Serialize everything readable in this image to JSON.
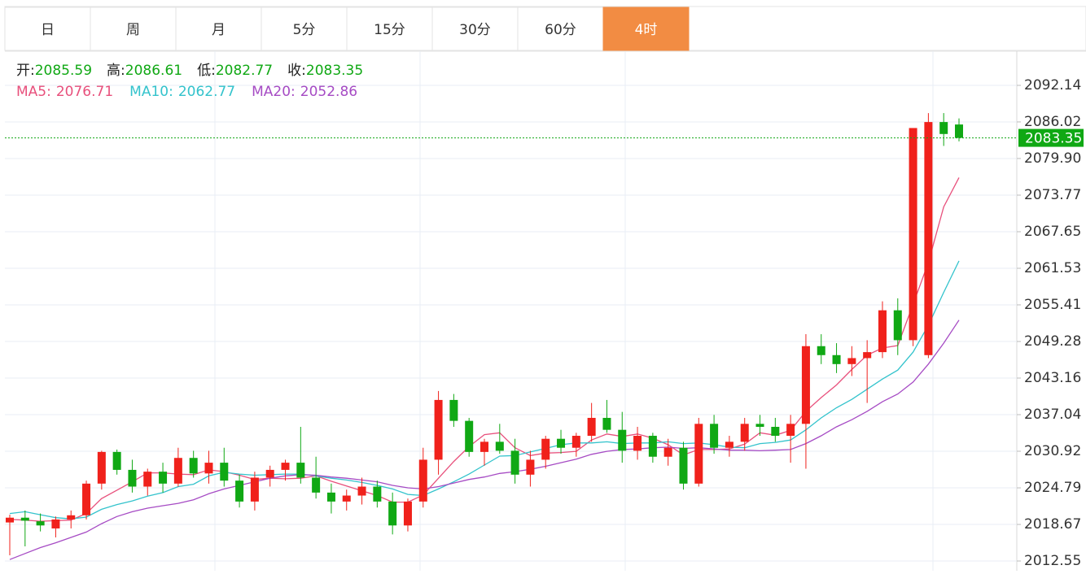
{
  "tabs": [
    "日",
    "周",
    "月",
    "5分",
    "15分",
    "30分",
    "60分",
    "4时"
  ],
  "active_tab": 7,
  "chart_data": {
    "type": "candlestick",
    "info": [
      {
        "label": "开:",
        "value": 2085.59
      },
      {
        "label": "高:",
        "value": 2086.61
      },
      {
        "label": "低:",
        "value": 2082.77
      },
      {
        "label": "收:",
        "value": 2083.35
      }
    ],
    "up_color": "#f0211b",
    "down_color": "#10a814",
    "last_price": 2083.35,
    "last_price_color": "#10a814",
    "ylim": [
      2010.92,
      2097.85
    ],
    "yticks": [
      2012.55,
      2018.67,
      2024.79,
      2030.92,
      2037.04,
      2043.16,
      2049.28,
      2055.41,
      2061.53,
      2067.65,
      2073.77,
      {
        "value": 2079.9,
        "label": "2079.90"
      },
      2086.02,
      2092.14
    ],
    "grid": true,
    "candles": [
      [
        2019.0,
        2020.3,
        2013.5,
        2019.8
      ],
      [
        2019.8,
        2021.0,
        2015.0,
        2019.3
      ],
      [
        2019.2,
        2020.5,
        2017.5,
        2018.5
      ],
      [
        2018.0,
        2020.0,
        2016.5,
        2019.5
      ],
      [
        2019.5,
        2021.0,
        2018.0,
        2020.2
      ],
      [
        2020.2,
        2026.0,
        2019.5,
        2025.5
      ],
      [
        2025.5,
        2031.0,
        2024.5,
        2030.8
      ],
      [
        2030.8,
        2031.2,
        2027.0,
        2027.8
      ],
      [
        2027.8,
        2029.5,
        2024.0,
        2025.0
      ],
      [
        2025.0,
        2028.0,
        2023.5,
        2027.5
      ],
      [
        2027.5,
        2029.0,
        2024.0,
        2025.5
      ],
      [
        2025.5,
        2031.5,
        2025.0,
        2029.8
      ],
      [
        2029.8,
        2031.0,
        2026.5,
        2027.2
      ],
      [
        2027.2,
        2031.0,
        2025.5,
        2029.0
      ],
      [
        2029.0,
        2031.5,
        2025.0,
        2026.0
      ],
      [
        2026.0,
        2027.0,
        2021.5,
        2022.5
      ],
      [
        2022.5,
        2027.5,
        2021.0,
        2026.5
      ],
      [
        2026.5,
        2028.5,
        2025.0,
        2027.8
      ],
      [
        2027.8,
        2029.5,
        2026.0,
        2029.0
      ],
      [
        2029.0,
        2035.0,
        2025.5,
        2026.5
      ],
      [
        2026.5,
        2030.0,
        2023.0,
        2024.0
      ],
      [
        2024.0,
        2025.5,
        2020.5,
        2022.5
      ],
      [
        2022.5,
        2024.5,
        2021.0,
        2023.5
      ],
      [
        2023.5,
        2026.5,
        2022.0,
        2025.0
      ],
      [
        2025.0,
        2026.0,
        2021.5,
        2022.5
      ],
      [
        2022.5,
        2024.0,
        2017.0,
        2018.5
      ],
      [
        2018.5,
        2023.0,
        2017.5,
        2022.5
      ],
      [
        2022.5,
        2031.5,
        2021.5,
        2029.5
      ],
      [
        2029.5,
        2041.0,
        2027.0,
        2039.5
      ],
      [
        2039.5,
        2040.5,
        2035.0,
        2036.0
      ],
      [
        2036.0,
        2036.5,
        2030.0,
        2030.8
      ],
      [
        2030.8,
        2033.0,
        2028.5,
        2032.5
      ],
      [
        2032.5,
        2035.5,
        2030.5,
        2031.0
      ],
      [
        2031.0,
        2033.0,
        2025.5,
        2027.0
      ],
      [
        2027.0,
        2031.0,
        2025.0,
        2029.5
      ],
      [
        2029.5,
        2033.5,
        2028.0,
        2033.0
      ],
      [
        2033.0,
        2034.5,
        2030.5,
        2031.5
      ],
      [
        2031.5,
        2034.0,
        2030.0,
        2033.5
      ],
      [
        2033.5,
        2039.0,
        2032.5,
        2036.5
      ],
      [
        2036.5,
        2039.5,
        2034.0,
        2034.5
      ],
      [
        2034.5,
        2037.5,
        2029.0,
        2031.0
      ],
      [
        2031.0,
        2035.0,
        2029.5,
        2033.5
      ],
      [
        2033.5,
        2034.0,
        2029.0,
        2030.0
      ],
      [
        2030.0,
        2033.0,
        2028.5,
        2031.5
      ],
      [
        2031.5,
        2032.5,
        2024.5,
        2025.5
      ],
      [
        2025.5,
        2036.5,
        2025.0,
        2035.5
      ],
      [
        2035.5,
        2037.0,
        2030.5,
        2031.5
      ],
      [
        2031.5,
        2033.5,
        2030.0,
        2032.5
      ],
      [
        2032.5,
        2036.5,
        2031.0,
        2035.5
      ],
      [
        2035.5,
        2037.0,
        2033.5,
        2035.0
      ],
      [
        2035.0,
        2036.5,
        2032.5,
        2033.5
      ],
      [
        2033.5,
        2037.0,
        2029.0,
        2035.5
      ],
      [
        2035.5,
        2050.5,
        2028.0,
        2048.5
      ],
      [
        2048.5,
        2050.5,
        2045.5,
        2047.0
      ],
      [
        2047.0,
        2049.0,
        2044.0,
        2045.5
      ],
      [
        2045.5,
        2048.5,
        2043.5,
        2046.5
      ],
      [
        2046.5,
        2049.5,
        2039.0,
        2047.5
      ],
      [
        2047.5,
        2056.0,
        2046.5,
        2054.5
      ],
      [
        2054.5,
        2056.5,
        2047.0,
        2049.5
      ],
      [
        2049.5,
        2085.0,
        2048.5,
        2085.0
      ],
      [
        2047.0,
        2087.5,
        2046.5,
        2086.0
      ],
      [
        2086.0,
        2087.5,
        2082.0,
        2084.0
      ],
      [
        2085.59,
        2086.61,
        2082.77,
        2083.35
      ]
    ],
    "series": [
      {
        "name": "MA5:",
        "color": "#e8507c",
        "last": 2076.71,
        "values": [
          2019.5,
          2019.4,
          2019.2,
          2019.3,
          2019.4,
          2020.5,
          2023.0,
          2024.4,
          2025.8,
          2027.3,
          2027.3,
          2027.1,
          2027.0,
          2027.8,
          2027.5,
          2026.9,
          2026.2,
          2026.4,
          2026.3,
          2026.4,
          2026.8,
          2025.9,
          2025.1,
          2024.3,
          2023.5,
          2022.4,
          2022.4,
          2023.6,
          2026.4,
          2029.2,
          2031.7,
          2033.7,
          2034.0,
          2031.5,
          2030.2,
          2030.6,
          2030.7,
          2030.9,
          2032.8,
          2033.8,
          2033.4,
          2033.8,
          2033.1,
          2032.0,
          2030.3,
          2031.2,
          2031.2,
          2031.3,
          2032.1,
          2034.0,
          2033.6,
          2034.4,
          2037.6,
          2039.9,
          2042.0,
          2044.6,
          2047.0,
          2048.2,
          2048.6,
          2055.5,
          2062.5,
          2071.8,
          2076.71
        ]
      },
      {
        "name": "MA10:",
        "color": "#33c3cc",
        "last": 2062.77,
        "values": [
          2020.5,
          2020.8,
          2020.3,
          2019.8,
          2019.6,
          2019.9,
          2021.2,
          2022.0,
          2022.6,
          2023.4,
          2024.0,
          2025.0,
          2025.4,
          2026.8,
          2027.4,
          2027.1,
          2026.9,
          2027.0,
          2027.1,
          2027.1,
          2026.8,
          2026.4,
          2026.1,
          2025.7,
          2025.2,
          2024.6,
          2023.7,
          2023.5,
          2024.6,
          2025.8,
          2027.1,
          2028.6,
          2030.1,
          2030.2,
          2030.8,
          2031.4,
          2032.0,
          2032.3,
          2032.3,
          2032.5,
          2032.2,
          2032.3,
          2032.3,
          2032.5,
          2032.2,
          2032.3,
          2032.0,
          2031.6,
          2031.5,
          2032.2,
          2032.4,
          2032.8,
          2034.5,
          2036.5,
          2038.2,
          2039.6,
          2041.3,
          2043.0,
          2044.5,
          2047.5,
          2052.0,
          2057.5,
          2062.77
        ]
      },
      {
        "name": "MA20:",
        "color": "#a64bc4",
        "last": 2052.86,
        "values": [
          2012.8,
          2013.8,
          2014.8,
          2015.6,
          2016.5,
          2017.4,
          2018.8,
          2020.0,
          2020.8,
          2021.4,
          2021.8,
          2022.2,
          2022.8,
          2023.8,
          2024.6,
          2025.2,
          2025.8,
          2026.4,
          2026.8,
          2027.0,
          2026.9,
          2026.6,
          2026.4,
          2026.1,
          2025.8,
          2025.2,
          2024.8,
          2024.6,
          2025.0,
          2025.6,
          2026.2,
          2026.6,
          2027.2,
          2027.5,
          2027.9,
          2028.4,
          2029.0,
          2029.6,
          2030.4,
          2030.9,
          2031.2,
          2031.3,
          2031.5,
          2031.6,
          2031.4,
          2031.5,
          2031.3,
          2031.1,
          2031.1,
          2031.0,
          2031.1,
          2031.2,
          2032.2,
          2033.5,
          2035.0,
          2036.2,
          2037.6,
          2039.2,
          2040.5,
          2042.5,
          2045.5,
          2049.0,
          2052.86
        ]
      }
    ]
  }
}
